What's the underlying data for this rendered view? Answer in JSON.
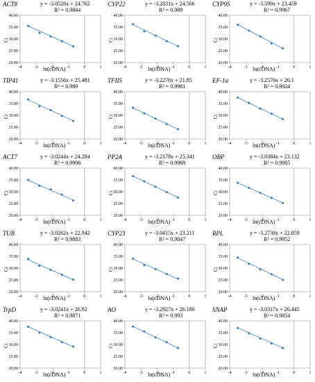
{
  "chart_data": [
    {
      "type": "scatter",
      "title": "ACT8",
      "equation": "y = -3.0528x + 24.762",
      "r2": "R² = 0.9844",
      "xlabel": "ln(cDNA)",
      "ylabel": "Ct",
      "ylim": [
        20,
        40
      ],
      "xlim": [
        -4,
        1
      ],
      "yticks": [
        "20.00",
        "25.00",
        "30.00",
        "35.00",
        "40.00"
      ],
      "xticks": [
        "-4",
        "-3",
        "-2",
        "-1",
        "0",
        "1"
      ],
      "x": [
        -3.5,
        -2.8,
        -2.1,
        -1.4,
        -0.7
      ],
      "y": [
        35.5,
        32.5,
        31.0,
        29.0,
        26.8
      ],
      "trend": {
        "slope": -3.0528,
        "intercept": 24.762
      }
    },
    {
      "type": "scatter",
      "title": "CYP22",
      "equation": "y = -3.2831x + 24.566",
      "r2": "R² = 0.989",
      "xlabel": "ln(cDNA)",
      "ylabel": "Ct",
      "ylim": [
        20,
        40
      ],
      "xlim": [
        -4,
        1
      ],
      "yticks": [
        "20.00",
        "25.00",
        "30.00",
        "35.00",
        "40.00"
      ],
      "xticks": [
        "-4",
        "-3",
        "-2",
        "-1",
        "0",
        "1"
      ],
      "x": [
        -3.5,
        -2.8,
        -2.1,
        -1.4,
        -0.7
      ],
      "y": [
        36.2,
        33.2,
        31.4,
        29.0,
        26.9
      ],
      "trend": {
        "slope": -3.2831,
        "intercept": 24.566
      }
    },
    {
      "type": "scatter",
      "title": "CYP95",
      "equation": "y = -3.599x + 23.459",
      "r2": "R² = 0.9967",
      "xlabel": "ln(cDNA)",
      "ylabel": "Ct",
      "ylim": [
        20,
        40
      ],
      "xlim": [
        -4,
        1
      ],
      "yticks": [
        "20.00",
        "25.00",
        "30.00",
        "35.00",
        "40.00"
      ],
      "xticks": [
        "-4",
        "-3",
        "-2",
        "-1",
        "0",
        "1"
      ],
      "x": [
        -3.5,
        -2.8,
        -2.1,
        -1.4,
        -0.7
      ],
      "y": [
        36.0,
        33.5,
        31.0,
        28.0,
        26.0
      ],
      "trend": {
        "slope": -3.599,
        "intercept": 23.459
      }
    },
    {
      "type": "scatter",
      "title": "TIP41",
      "equation": "y = -3.1556x + 25.481",
      "r2": "R² = 0.989",
      "xlabel": "ln(cDNA)",
      "ylabel": "Ct",
      "ylim": [
        20,
        40
      ],
      "xlim": [
        -4,
        1
      ],
      "yticks": [
        "20.00",
        "25.00",
        "30.00",
        "35.00",
        "40.00"
      ],
      "xticks": [
        "-4",
        "-3",
        "-2",
        "-1",
        "0",
        "1"
      ],
      "x": [
        -3.5,
        -2.8,
        -2.1,
        -1.4,
        -0.7
      ],
      "y": [
        36.7,
        33.8,
        32.2,
        29.7,
        27.6
      ],
      "trend": {
        "slope": -3.1556,
        "intercept": 25.481
      }
    },
    {
      "type": "scatter",
      "title": "TFIIS",
      "equation": "y = -3.2276x + 21.85",
      "r2": "R² = 0.9981",
      "xlabel": "ln(cDNA)",
      "ylabel": "Ct",
      "ylim": [
        20,
        40
      ],
      "xlim": [
        -4,
        1
      ],
      "yticks": [
        "20.00",
        "25.00",
        "30.00",
        "35.00",
        "40.00"
      ],
      "xticks": [
        "-4",
        "-3",
        "-2",
        "-1",
        "0",
        "1"
      ],
      "x": [
        -3.5,
        -2.8,
        -2.1,
        -1.4,
        -0.7
      ],
      "y": [
        33.2,
        30.8,
        28.6,
        26.3,
        24.1
      ],
      "trend": {
        "slope": -3.2276,
        "intercept": 21.85
      }
    },
    {
      "type": "scatter",
      "title": "EF-1α",
      "equation": "y = -3.2576x + 26.1",
      "r2": "R² = 0.9924",
      "xlabel": "ln(cDNA)",
      "ylabel": "Ct",
      "ylim": [
        20,
        40
      ],
      "xlim": [
        -4,
        1
      ],
      "yticks": [
        "20.00",
        "25.00",
        "30.00",
        "35.00",
        "40.00"
      ],
      "xticks": [
        "-4",
        "-3",
        "-2",
        "-1",
        "0",
        "1"
      ],
      "x": [
        -3.5,
        -2.8,
        -2.1,
        -1.4,
        -0.7
      ],
      "y": [
        37.5,
        35.2,
        32.8,
        30.7,
        28.4
      ],
      "trend": {
        "slope": -3.2576,
        "intercept": 26.1
      }
    },
    {
      "type": "scatter",
      "title": "ACT7",
      "equation": "y = -3.0244x + 24.284",
      "r2": "R² = 0.9906",
      "xlabel": "ln(cDNA)",
      "ylabel": "Ct",
      "ylim": [
        20,
        40
      ],
      "xlim": [
        -4,
        1
      ],
      "yticks": [
        "20.00",
        "25.00",
        "30.00",
        "35.00",
        "40.00"
      ],
      "xticks": [
        "-4",
        "-3",
        "-2",
        "-1",
        "0",
        "1"
      ],
      "x": [
        -3.5,
        -2.8,
        -2.1,
        -1.4,
        -0.7
      ],
      "y": [
        35.0,
        32.5,
        31.0,
        28.8,
        26.3
      ],
      "trend": {
        "slope": -3.0244,
        "intercept": 24.284
      }
    },
    {
      "type": "scatter",
      "title": "PP2A",
      "equation": "y = -3.2178x + 25.341",
      "r2": "R² = 0.9969",
      "xlabel": "ln(cDNA)",
      "ylabel": "Ct",
      "ylim": [
        20,
        40
      ],
      "xlim": [
        -4,
        1
      ],
      "yticks": [
        "20.00",
        "25.00",
        "30.00",
        "35.00",
        "40.00"
      ],
      "xticks": [
        "-4",
        "-3",
        "-2",
        "-1",
        "0",
        "1"
      ],
      "x": [
        -3.5,
        -2.8,
        -2.1,
        -1.4,
        -0.7
      ],
      "y": [
        36.6,
        34.4,
        32.1,
        29.8,
        27.5
      ],
      "trend": {
        "slope": -3.2178,
        "intercept": 25.341
      }
    },
    {
      "type": "scatter",
      "title": "OBP",
      "equation": "y = -3.0384x + 23.132",
      "r2": "R² = 0.9985",
      "xlabel": "ln(cDNA)",
      "ylabel": "Ct",
      "ylim": [
        20,
        40
      ],
      "xlim": [
        -4,
        1
      ],
      "yticks": [
        "20.00",
        "25.00",
        "30.00",
        "35.00",
        "40.00"
      ],
      "xticks": [
        "-4",
        "-3",
        "-2",
        "-1",
        "0",
        "1"
      ],
      "x": [
        -3.5,
        -2.8,
        -2.1,
        -1.4,
        -0.7
      ],
      "y": [
        33.8,
        31.6,
        29.5,
        27.4,
        25.2
      ],
      "trend": {
        "slope": -3.0384,
        "intercept": 23.132
      }
    },
    {
      "type": "scatter",
      "title": "TUB",
      "equation": "y = -3.0262x + 22.942",
      "r2": "R² = 0.9883",
      "xlabel": "ln(cDNA)",
      "ylabel": "Ct",
      "ylim": [
        20,
        40
      ],
      "xlim": [
        -4,
        1
      ],
      "yticks": [
        "20.00",
        "25.00",
        "30.00",
        "35.00",
        "40.00"
      ],
      "xticks": [
        "-4",
        "-3",
        "-2",
        "-1",
        "0",
        "1"
      ],
      "x": [
        -3.5,
        -2.8,
        -2.1,
        -1.4,
        -0.7
      ],
      "y": [
        33.9,
        31.0,
        29.2,
        27.2,
        25.1
      ],
      "trend": {
        "slope": -3.0262,
        "intercept": 22.942
      }
    },
    {
      "type": "scatter",
      "title": "CYP23",
      "equation": "y = -3.0415x + 23.211",
      "r2": "R² = 0.9847",
      "xlabel": "ln(cDNA)",
      "ylabel": "Ct",
      "ylim": [
        20,
        40
      ],
      "xlim": [
        -4,
        1
      ],
      "yticks": [
        "20.00",
        "25.00",
        "30.00",
        "35.00",
        "40.00"
      ],
      "xticks": [
        "-4",
        "-3",
        "-2",
        "-1",
        "0",
        "1"
      ],
      "x": [
        -3.5,
        -2.8,
        -2.1,
        -1.4,
        -0.7
      ],
      "y": [
        34.0,
        31.2,
        29.6,
        27.5,
        25.6
      ],
      "trend": {
        "slope": -3.0415,
        "intercept": 23.211
      }
    },
    {
      "type": "scatter",
      "title": "RPL",
      "equation": "y = -3.2738x + 22.859",
      "r2": "R² = 0.9952",
      "xlabel": "ln(cDNA)",
      "ylabel": "Ct",
      "ylim": [
        20,
        40
      ],
      "xlim": [
        -4,
        1
      ],
      "yticks": [
        "20.00",
        "25.00",
        "30.00",
        "35.00",
        "40.00"
      ],
      "xticks": [
        "-4",
        "-3",
        "-2",
        "-1",
        "0",
        "1"
      ],
      "x": [
        -3.5,
        -2.8,
        -2.1,
        -1.4,
        -0.7
      ],
      "y": [
        34.5,
        31.8,
        29.5,
        27.4,
        25.0
      ],
      "trend": {
        "slope": -3.2738,
        "intercept": 22.859
      }
    },
    {
      "type": "scatter",
      "title": "TrpD",
      "equation": "y = -3.0241x + 26.92",
      "r2": "R² = 0.9871",
      "xlabel": "ln(cDNA)",
      "ylabel": "Ct",
      "ylim": [
        20,
        40
      ],
      "xlim": [
        -4,
        1
      ],
      "yticks": [
        "20.00",
        "25.00",
        "30.00",
        "35.00",
        "40.00"
      ],
      "xticks": [
        "-4",
        "-3",
        "-2",
        "-1",
        "0",
        "1"
      ],
      "x": [
        -3.5,
        -2.8,
        -2.1,
        -1.4,
        -0.7
      ],
      "y": [
        37.5,
        35.0,
        33.1,
        31.0,
        29.1
      ],
      "trend": {
        "slope": -3.0241,
        "intercept": 26.92
      }
    },
    {
      "type": "scatter",
      "title": "AO",
      "equation": "y = -3.2927x + 26.186",
      "r2": "R² = 0.993",
      "xlabel": "ln(cDNA)",
      "ylabel": "Ct",
      "ylim": [
        20,
        40
      ],
      "xlim": [
        -4,
        1
      ],
      "yticks": [
        "20.00",
        "25.00",
        "30.00",
        "35.00",
        "40.00"
      ],
      "xticks": [
        "-4",
        "-3",
        "-2",
        "-1",
        "0",
        "1"
      ],
      "x": [
        -3.5,
        -2.8,
        -2.1,
        -1.4,
        -0.7
      ],
      "y": [
        37.6,
        35.5,
        33.0,
        31.0,
        28.5
      ],
      "trend": {
        "slope": -3.2927,
        "intercept": 26.186
      }
    },
    {
      "type": "scatter",
      "title": "SNAP",
      "equation": "y = -3.0317x + 26.445",
      "r2": "R² = 0.9854",
      "xlabel": "ln(cDNA)",
      "ylabel": "Ct",
      "ylim": [
        20,
        40
      ],
      "xlim": [
        -4,
        1
      ],
      "yticks": [
        "20.00",
        "25.00",
        "30.00",
        "35.00",
        "40.00"
      ],
      "xticks": [
        "-4",
        "-3",
        "-2",
        "-1",
        "0",
        "1"
      ],
      "x": [
        -3.5,
        -2.8,
        -2.1,
        -1.4,
        -0.7
      ],
      "y": [
        37.0,
        34.7,
        32.5,
        30.4,
        28.5
      ],
      "trend": {
        "slope": -3.0317,
        "intercept": 26.445
      }
    }
  ],
  "colors": {
    "line": "#4a8fd0",
    "point": "#2f73b8",
    "axis": "#888888"
  }
}
